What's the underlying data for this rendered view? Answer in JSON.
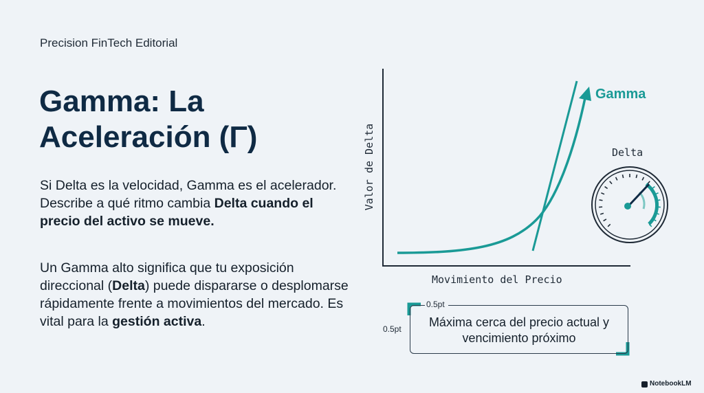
{
  "brand": "Precision FinTech Editorial",
  "title": "Gamma: La Aceleración (Γ)",
  "paragraph1": {
    "text": "Si Delta es la velocidad, Gamma es el acelerador. Describe a qué ritmo cambia ",
    "bold": "Delta cuando el precio del activo se mueve."
  },
  "paragraph2": {
    "t1": "Un Gamma alto significa que tu exposición direccional (",
    "b1": "Delta",
    "t2": ") puede dispararse o desplomarse rápidamente frente a movimientos del mercado. Es vital para la ",
    "b2": "gestión activa",
    "t3": "."
  },
  "diagram": {
    "y_axis_label": "Valor de Delta",
    "x_axis_label": "Movimiento del Precio",
    "curve_label": "Gamma",
    "gauge_label": "Delta",
    "note": "Máxima cerca del precio actual y vencimiento próximo",
    "annotation_top": "0.5pt",
    "annotation_left": "0.5pt"
  },
  "footer": "NotebookLM",
  "colors": {
    "accent": "#1a9a96",
    "title": "#0f2a44",
    "background": "#eff3f7"
  }
}
